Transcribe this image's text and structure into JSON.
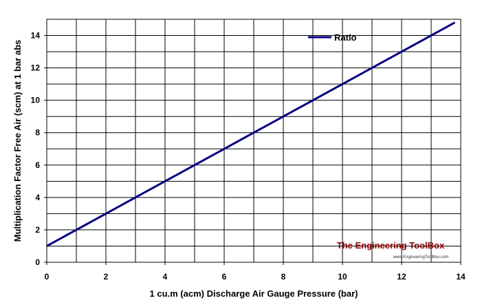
{
  "chart_data": {
    "type": "line",
    "xlabel": "1 cu.m (acm) Discharge Air Gauge Pressure (bar)",
    "ylabel": "Multiplication Factor Free Air (scm) at 1 bar abs",
    "xlim": [
      0,
      14
    ],
    "ylim": [
      0,
      15
    ],
    "x_ticks": [
      0,
      2,
      4,
      6,
      8,
      10,
      12,
      14
    ],
    "y_ticks": [
      0,
      2,
      4,
      6,
      8,
      10,
      12,
      14
    ],
    "x_tick_labels": [
      "0",
      "2",
      "4",
      "6",
      "8",
      "10",
      "12",
      "14"
    ],
    "y_tick_labels": [
      "0",
      "2",
      "4",
      "6",
      "8",
      "10",
      "12",
      "14"
    ],
    "x_grid_step": 1,
    "y_grid_step": 1,
    "grid": true,
    "legend_position": "top-right",
    "series": [
      {
        "name": "Ratio",
        "color": "#000080",
        "x": [
          0,
          1,
          2,
          3,
          4,
          5,
          6,
          7,
          8,
          9,
          10,
          11,
          12,
          13,
          13.8
        ],
        "y": [
          1,
          2,
          3,
          4,
          5,
          6,
          7,
          8,
          9,
          10,
          11,
          12,
          13,
          14,
          14.8
        ]
      }
    ]
  },
  "watermark": {
    "title": "The Engineering ToolBox",
    "url": "www.EngineeringToolBox.com"
  }
}
